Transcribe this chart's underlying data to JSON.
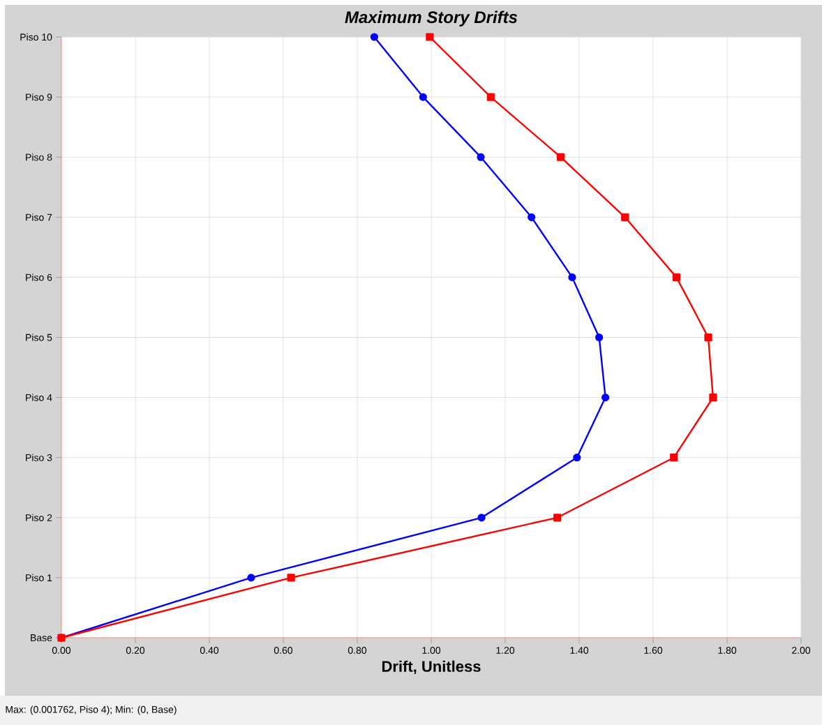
{
  "chart_data": {
    "type": "line",
    "orientation": "horizontal",
    "title": "Maximum Story Drifts",
    "xlabel": "Drift, Unitless",
    "xlim": [
      0,
      2.0
    ],
    "xticks": [
      {
        "value": 0,
        "label": "0.00"
      },
      {
        "value": 0.2,
        "label": "0.20"
      },
      {
        "value": 0.4,
        "label": "0.40"
      },
      {
        "value": 0.6,
        "label": "0.60"
      },
      {
        "value": 0.8,
        "label": "0.80"
      },
      {
        "value": 1.0,
        "label": "1.00"
      },
      {
        "value": 1.2,
        "label": "1.20"
      },
      {
        "value": 1.4,
        "label": "1.40"
      },
      {
        "value": 1.6,
        "label": "1.60"
      },
      {
        "value": 1.8,
        "label": "1.80"
      },
      {
        "value": 2.0,
        "label": "2.00"
      }
    ],
    "categories": [
      "Piso 10",
      "Piso 9",
      "Piso 8",
      "Piso 7",
      "Piso 6",
      "Piso 5",
      "Piso 4",
      "Piso 3",
      "Piso 2",
      "Piso 1",
      "Base"
    ],
    "series": [
      {
        "color": "#0000ff",
        "marker": "circle",
        "values": [
          0.846,
          0.978,
          1.134,
          1.271,
          1.381,
          1.454,
          1.471,
          1.394,
          1.136,
          0.513,
          0
        ]
      },
      {
        "color": "#ff0000",
        "marker": "square",
        "values": [
          0.996,
          1.161,
          1.35,
          1.524,
          1.663,
          1.749,
          1.762,
          1.656,
          1.341,
          0.621,
          0
        ]
      }
    ],
    "grid": true,
    "line_style": "solid",
    "annotations": [
      "Max: (0.001762, Piso 4);   Min: (0, Base)"
    ]
  }
}
